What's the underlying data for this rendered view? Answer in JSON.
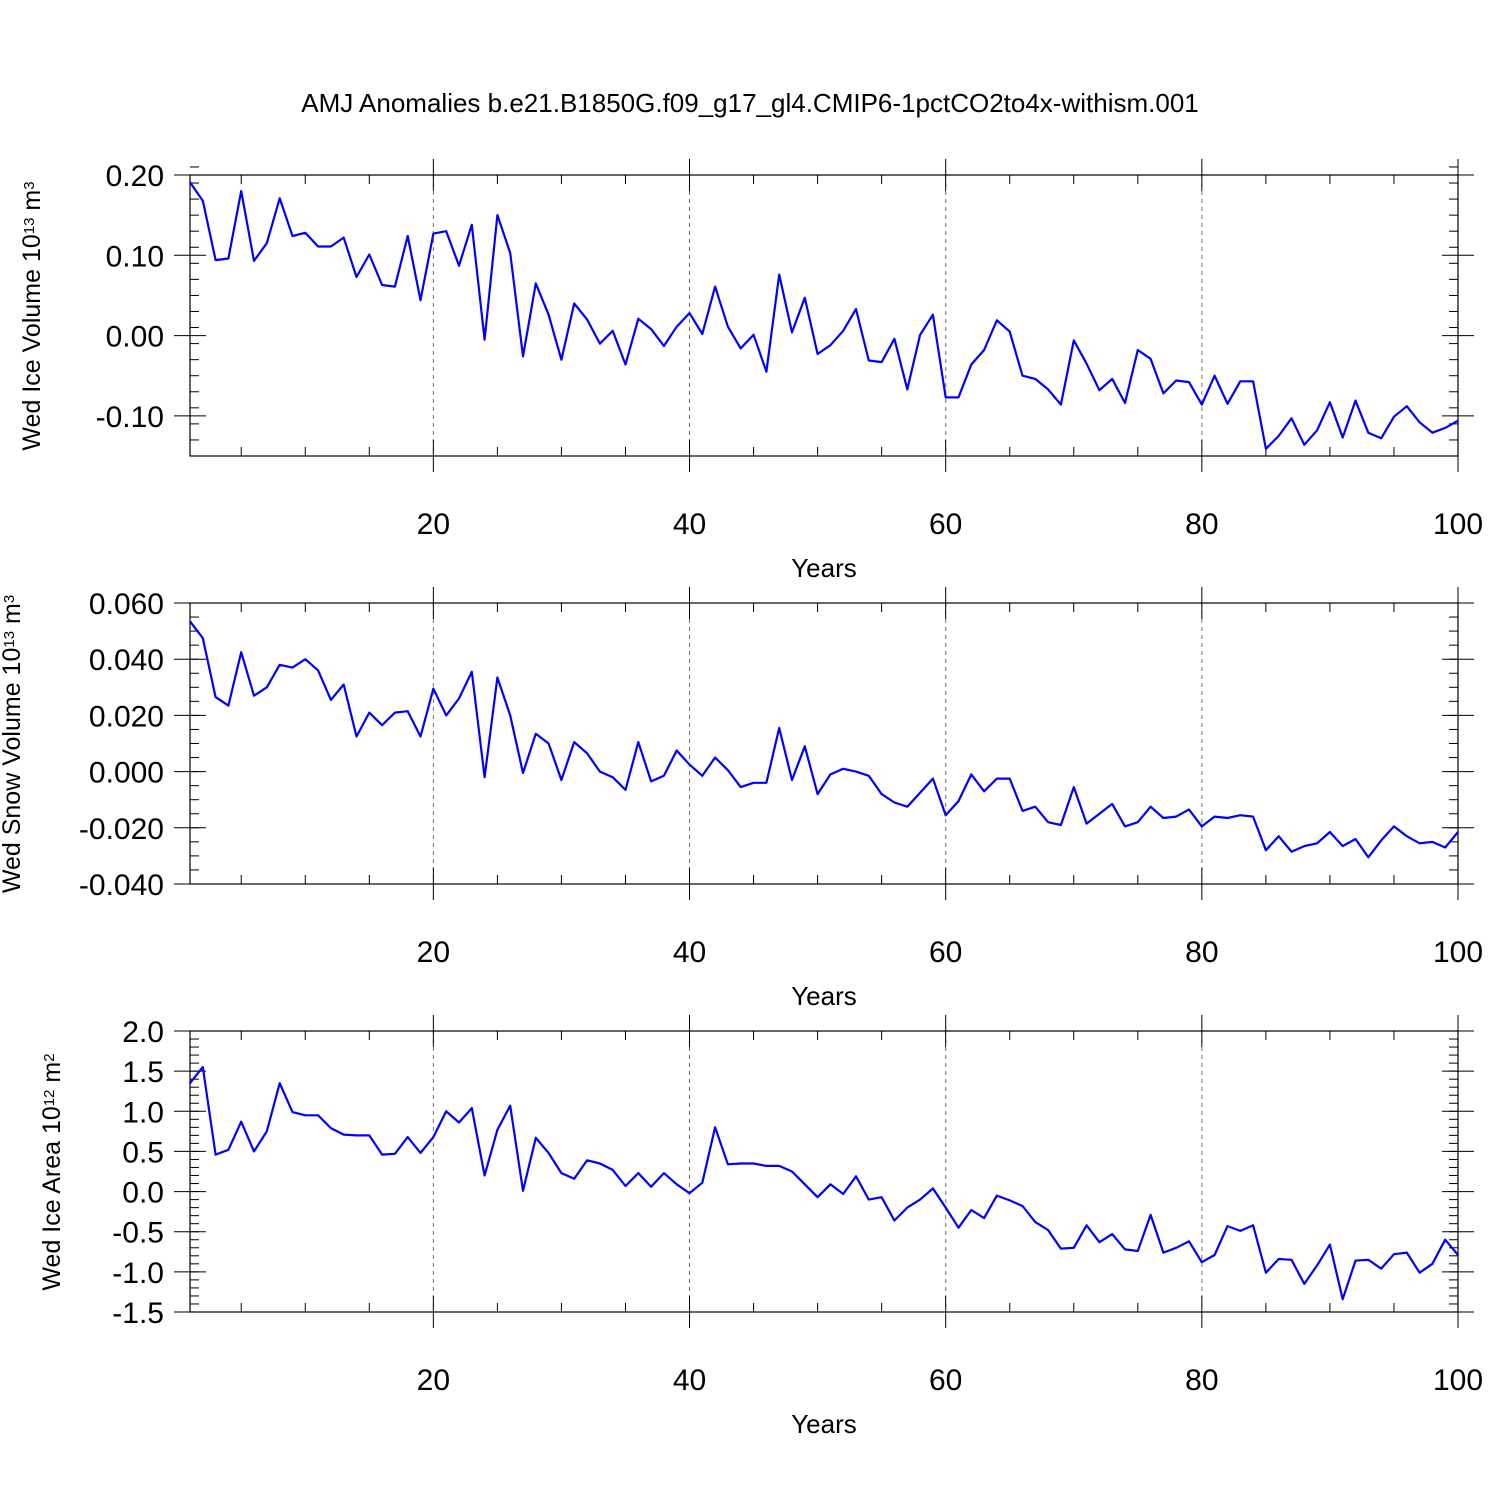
{
  "title": "AMJ Anomalies b.e21.B1850G.f09_g17_gl4.CMIP6-1pctCO2to4x-withism.001",
  "colors": {
    "line": "#0000ff",
    "axis": "#000000",
    "grid": "#777777",
    "background": "#ffffff"
  },
  "chart_data": [
    {
      "type": "line",
      "xlabel": "Years",
      "ylabel": {
        "text": "Wed Ice Volume 10",
        "exp": "13",
        "unit": " m",
        "unit_exp": "3"
      },
      "xlim": [
        1,
        100
      ],
      "ylim": [
        -0.15,
        0.2
      ],
      "xticks": [
        20,
        40,
        60,
        80,
        100
      ],
      "xtick_labels": [
        "20",
        "40",
        "60",
        "80",
        "100"
      ],
      "yticks": [
        0.2,
        0.1,
        0.0,
        -0.1
      ],
      "ytick_labels": [
        "0.20",
        "0.10",
        "0.00",
        "-0.10"
      ],
      "ygrid": false,
      "xgrid_dashed": true,
      "series": [
        {
          "values": [
            0.191,
            0.168,
            0.094,
            0.096,
            0.18,
            0.093,
            0.115,
            0.171,
            0.124,
            0.128,
            0.111,
            0.111,
            0.122,
            0.073,
            0.101,
            0.063,
            0.061,
            0.124,
            0.044,
            0.127,
            0.13,
            0.087,
            0.138,
            -0.005,
            0.15,
            0.103,
            -0.026,
            0.065,
            0.026,
            -0.03,
            0.04,
            0.02,
            -0.01,
            0.006,
            -0.036,
            0.021,
            0.008,
            -0.013,
            0.011,
            0.028,
            0.002,
            0.061,
            0.011,
            -0.016,
            0.001,
            -0.045,
            0.076,
            0.004,
            0.047,
            -0.023,
            -0.012,
            0.006,
            0.033,
            -0.031,
            -0.033,
            -0.004,
            -0.067,
            0.001,
            0.026,
            -0.077,
            -0.077,
            -0.036,
            -0.018,
            0.019,
            0.005,
            -0.05,
            -0.054,
            -0.067,
            -0.086,
            -0.006,
            -0.035,
            -0.068,
            -0.054,
            -0.084,
            -0.018,
            -0.029,
            -0.072,
            -0.056,
            -0.058,
            -0.086,
            -0.05,
            -0.085,
            -0.057,
            -0.057,
            -0.141,
            -0.125,
            -0.103,
            -0.136,
            -0.118,
            -0.083,
            -0.127,
            -0.081,
            -0.121,
            -0.128,
            -0.101,
            -0.088,
            -0.108,
            -0.121,
            -0.115,
            -0.106
          ]
        }
      ]
    },
    {
      "type": "line",
      "xlabel": "Years",
      "ylabel": {
        "text": "Wed Snow Volume 10",
        "exp": "13",
        "unit": " m",
        "unit_exp": "3"
      },
      "xlim": [
        1,
        100
      ],
      "ylim": [
        -0.04,
        0.06
      ],
      "xticks": [
        20,
        40,
        60,
        80,
        100
      ],
      "xtick_labels": [
        "20",
        "40",
        "60",
        "80",
        "100"
      ],
      "yticks": [
        0.06,
        0.04,
        0.02,
        0.0,
        -0.02,
        -0.04
      ],
      "ytick_labels": [
        "0.060",
        "0.040",
        "0.020",
        "0.000",
        "-0.020",
        "-0.040"
      ],
      "ygrid": false,
      "xgrid_dashed": true,
      "series": [
        {
          "values": [
            0.0535,
            0.0475,
            0.0265,
            0.0235,
            0.0425,
            0.027,
            0.03,
            0.038,
            0.037,
            0.04,
            0.036,
            0.0255,
            0.031,
            0.0125,
            0.021,
            0.0165,
            0.021,
            0.0215,
            0.0125,
            0.0295,
            0.02,
            0.026,
            0.0355,
            -0.002,
            0.0335,
            0.02,
            -0.0005,
            0.0135,
            0.01,
            -0.003,
            0.0105,
            0.0065,
            0.0,
            -0.002,
            -0.0065,
            0.0105,
            -0.0035,
            -0.0015,
            0.0075,
            0.0025,
            -0.0015,
            0.005,
            0.0005,
            -0.0055,
            -0.004,
            -0.004,
            0.0155,
            -0.003,
            0.009,
            -0.008,
            -0.001,
            0.001,
            0.0,
            -0.0015,
            -0.008,
            -0.011,
            -0.0125,
            -0.0075,
            -0.0025,
            -0.0155,
            -0.0105,
            -0.001,
            -0.007,
            -0.0025,
            -0.0025,
            -0.014,
            -0.0125,
            -0.018,
            -0.019,
            -0.0055,
            -0.0185,
            -0.015,
            -0.0115,
            -0.0195,
            -0.018,
            -0.0125,
            -0.0165,
            -0.016,
            -0.0135,
            -0.0195,
            -0.016,
            -0.0165,
            -0.0155,
            -0.016,
            -0.028,
            -0.023,
            -0.0285,
            -0.0265,
            -0.0255,
            -0.0215,
            -0.0265,
            -0.024,
            -0.0305,
            -0.0245,
            -0.0195,
            -0.023,
            -0.0255,
            -0.025,
            -0.027,
            -0.0215
          ]
        }
      ]
    },
    {
      "type": "line",
      "xlabel": "Years",
      "ylabel": {
        "text": "Wed Ice Area 10",
        "exp": "12",
        "unit": " m",
        "unit_exp": "2"
      },
      "xlim": [
        1,
        100
      ],
      "ylim": [
        -1.5,
        2.0
      ],
      "xticks": [
        20,
        40,
        60,
        80,
        100
      ],
      "xtick_labels": [
        "20",
        "40",
        "60",
        "80",
        "100"
      ],
      "yticks": [
        2.0,
        1.5,
        1.0,
        0.5,
        0.0,
        -0.5,
        -1.0,
        -1.5
      ],
      "ytick_labels": [
        "2.0",
        "1.5",
        "1.0",
        "0.5",
        "0.0",
        "-0.5",
        "-1.0",
        "-1.5"
      ],
      "ygrid": false,
      "xgrid_dashed": true,
      "series": [
        {
          "values": [
            1.35,
            1.55,
            0.46,
            0.52,
            0.87,
            0.5,
            0.75,
            1.35,
            0.99,
            0.95,
            0.95,
            0.79,
            0.71,
            0.7,
            0.7,
            0.46,
            0.47,
            0.68,
            0.48,
            0.68,
            1.0,
            0.86,
            1.04,
            0.2,
            0.77,
            1.07,
            0.01,
            0.67,
            0.48,
            0.23,
            0.16,
            0.39,
            0.35,
            0.27,
            0.07,
            0.23,
            0.06,
            0.23,
            0.09,
            -0.02,
            0.11,
            0.8,
            0.34,
            0.35,
            0.35,
            0.32,
            0.32,
            0.25,
            0.09,
            -0.07,
            0.09,
            -0.03,
            0.19,
            -0.1,
            -0.07,
            -0.36,
            -0.2,
            -0.1,
            0.04,
            -0.2,
            -0.45,
            -0.23,
            -0.33,
            -0.05,
            -0.11,
            -0.18,
            -0.38,
            -0.48,
            -0.71,
            -0.7,
            -0.42,
            -0.63,
            -0.53,
            -0.72,
            -0.74,
            -0.29,
            -0.76,
            -0.7,
            -0.62,
            -0.88,
            -0.79,
            -0.43,
            -0.49,
            -0.42,
            -1.01,
            -0.84,
            -0.85,
            -1.15,
            -0.92,
            -0.66,
            -1.34,
            -0.86,
            -0.85,
            -0.96,
            -0.78,
            -0.76,
            -1.01,
            -0.9,
            -0.6,
            -0.79
          ]
        }
      ]
    }
  ]
}
